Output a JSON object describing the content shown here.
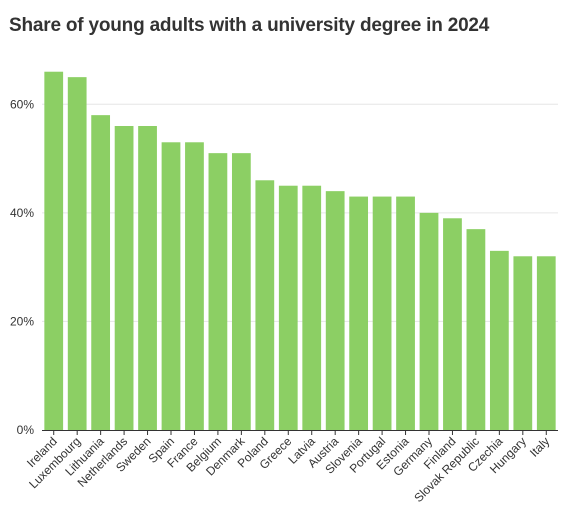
{
  "chart_data": {
    "type": "bar",
    "title": "Share of young adults with a university degree in 2024",
    "xlabel": "",
    "ylabel": "",
    "ylim": [
      0,
      70
    ],
    "yticks": [
      0,
      20,
      40,
      60
    ],
    "ytick_labels": [
      "0%",
      "20%",
      "40%",
      "60%"
    ],
    "categories": [
      "Ireland",
      "Luxembourg",
      "Lithuania",
      "Netherlands",
      "Sweden",
      "Spain",
      "France",
      "Belgium",
      "Denmark",
      "Poland",
      "Greece",
      "Latvia",
      "Austria",
      "Slovenia",
      "Portugal",
      "Estonia",
      "Germany",
      "Finland",
      "Slovak Republic",
      "Czechia",
      "Hungary",
      "Italy"
    ],
    "values": [
      66,
      65,
      58,
      56,
      56,
      53,
      53,
      51,
      51,
      46,
      45,
      45,
      44,
      43,
      43,
      43,
      40,
      39,
      37,
      33,
      32,
      32
    ],
    "bar_color": "#8ccf64",
    "grid": "horizontal",
    "legend": "none"
  }
}
